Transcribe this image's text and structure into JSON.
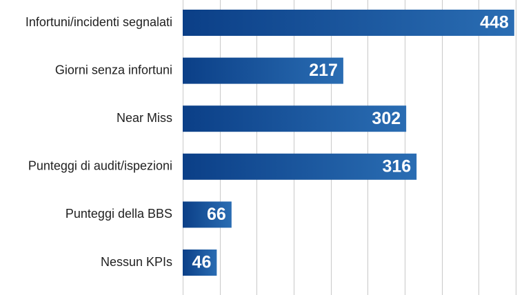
{
  "chart_data": {
    "type": "bar",
    "orientation": "horizontal",
    "categories": [
      "Infortuni/incidenti segnalati",
      "Giorni senza infortuni",
      "Near Miss",
      "Punteggi di audit/ispezioni",
      "Punteggi della BBS",
      "Nessun KPIs"
    ],
    "values": [
      448,
      217,
      302,
      316,
      66,
      46
    ],
    "title": "",
    "xlabel": "",
    "ylabel": "",
    "xlim": [
      0,
      450
    ],
    "grid": true,
    "data_labels": "inside-end",
    "colors": {
      "bar_gradient_start": "#0b3f87",
      "bar_gradient_end": "#2a6db3",
      "value_text": "#ffffff",
      "category_text": "#1f1f1f",
      "grid": "#c8c8c8"
    }
  }
}
